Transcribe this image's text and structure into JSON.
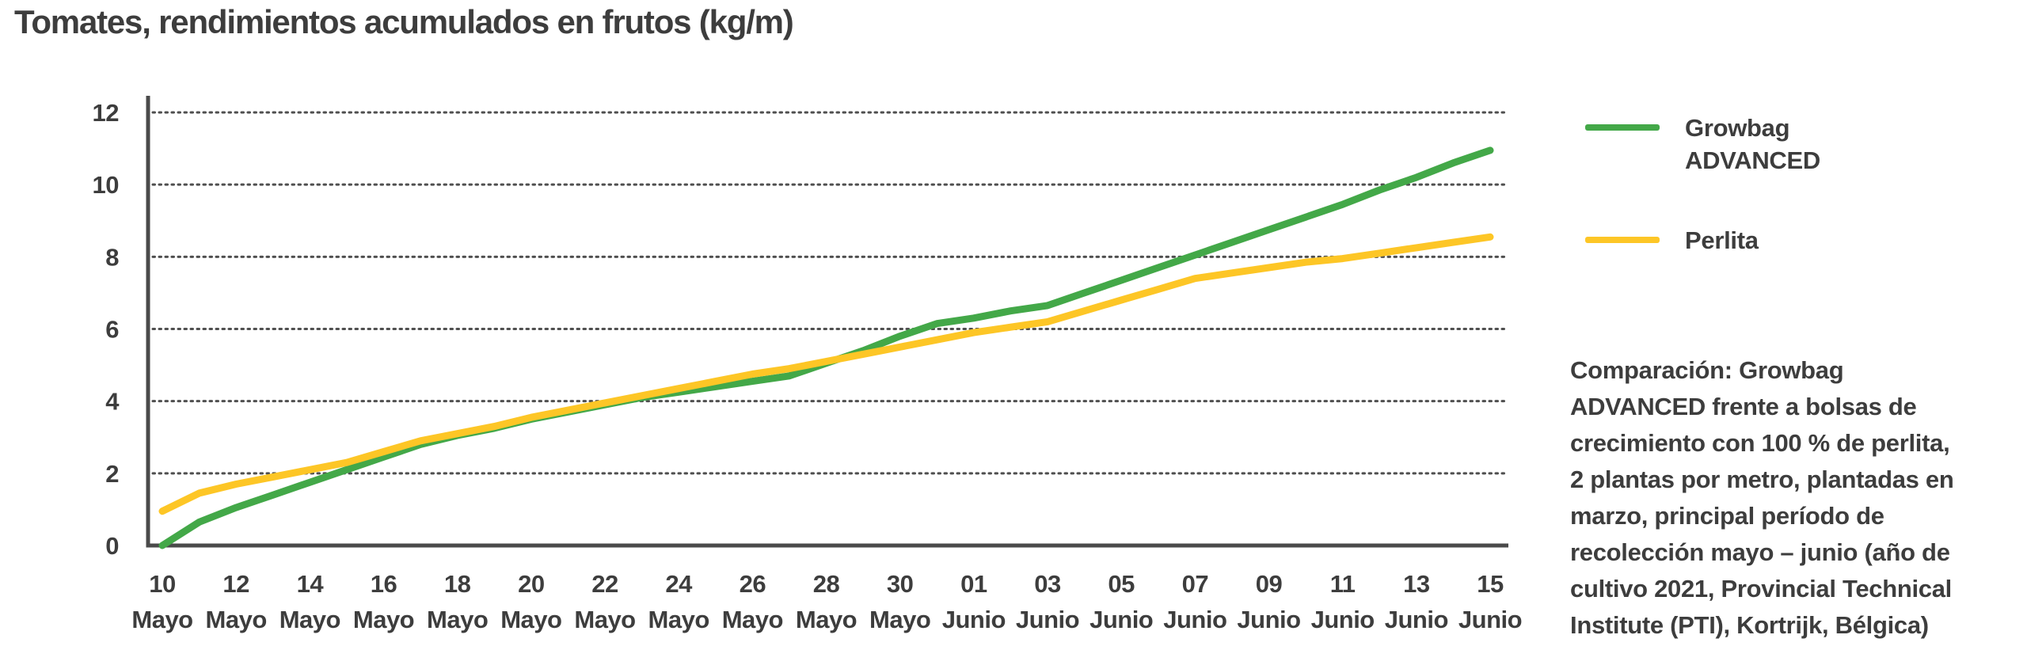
{
  "chart_data": {
    "type": "line",
    "title": "Tomates, rendimientos acumulados en frutos (kg/m)",
    "xlabel": "",
    "ylabel": "",
    "ylim": [
      0,
      12
    ],
    "yticks": [
      0,
      2,
      4,
      6,
      8,
      10,
      12
    ],
    "grid": "horizontal-dotted",
    "legend_position": "right",
    "x_unit": "days",
    "x_tick_step_days": 2,
    "x_ticks": [
      {
        "day": "10",
        "month": "Mayo"
      },
      {
        "day": "12",
        "month": "Mayo"
      },
      {
        "day": "14",
        "month": "Mayo"
      },
      {
        "day": "16",
        "month": "Mayo"
      },
      {
        "day": "18",
        "month": "Mayo"
      },
      {
        "day": "20",
        "month": "Mayo"
      },
      {
        "day": "22",
        "month": "Mayo"
      },
      {
        "day": "24",
        "month": "Mayo"
      },
      {
        "day": "26",
        "month": "Mayo"
      },
      {
        "day": "28",
        "month": "Mayo"
      },
      {
        "day": "30",
        "month": "Mayo"
      },
      {
        "day": "01",
        "month": "Junio"
      },
      {
        "day": "03",
        "month": "Junio"
      },
      {
        "day": "05",
        "month": "Junio"
      },
      {
        "day": "07",
        "month": "Junio"
      },
      {
        "day": "09",
        "month": "Junio"
      },
      {
        "day": "11",
        "month": "Junio"
      },
      {
        "day": "13",
        "month": "Junio"
      },
      {
        "day": "15",
        "month": "Junio"
      }
    ],
    "series": [
      {
        "name": "Growbag ADVANCED",
        "color": "#43a848",
        "values": [
          0,
          0.65,
          1.05,
          1.4,
          1.75,
          2.1,
          2.45,
          2.8,
          3.05,
          3.25,
          3.5,
          3.7,
          3.9,
          4.1,
          4.25,
          4.4,
          4.55,
          4.7,
          5.05,
          5.4,
          5.8,
          6.15,
          6.3,
          6.5,
          6.65,
          7.0,
          7.35,
          7.7,
          8.05,
          8.4,
          8.75,
          9.1,
          9.45,
          9.85,
          10.2,
          10.6,
          10.95
        ]
      },
      {
        "name": "Perlita",
        "color": "#fdc626",
        "values": [
          0.95,
          1.45,
          1.7,
          1.9,
          2.1,
          2.3,
          2.6,
          2.9,
          3.1,
          3.3,
          3.55,
          3.75,
          3.95,
          4.15,
          4.35,
          4.55,
          4.75,
          4.9,
          5.1,
          5.3,
          5.5,
          5.7,
          5.9,
          6.05,
          6.2,
          6.5,
          6.8,
          7.1,
          7.4,
          7.55,
          7.7,
          7.85,
          7.95,
          8.1,
          8.25,
          8.4,
          8.55
        ]
      }
    ],
    "colors": {
      "text": "#3d3d3d",
      "axis": "#4a4a4a",
      "grid": "#4f4f4f"
    }
  },
  "legend": {
    "items": [
      {
        "label": "Growbag\nADVANCED"
      },
      {
        "label": "Perlita"
      }
    ]
  },
  "caption": "Comparación: Growbag\nADVANCED frente a bolsas de\ncrecimiento con 100 % de perlita,\n2 plantas por metro, plantadas en\nmarzo, principal período de\nrecolección mayo – junio (año de\ncultivo 2021, Provincial Technical\nInstitute (PTI), Kortrijk, Bélgica)"
}
